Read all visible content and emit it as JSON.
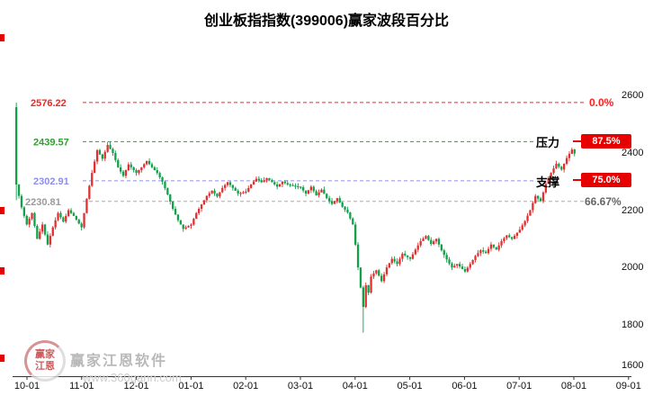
{
  "title": "创业板指指数(399006)赢家波段百分比",
  "colors": {
    "up": "#e03030",
    "down": "#12a04a",
    "axis": "#333333",
    "pct_box": "#e60000",
    "mark": "#e60000"
  },
  "y_axis": {
    "values": [
      2600,
      2400,
      2200,
      2000,
      1800,
      1600
    ],
    "labels": [
      "2600",
      "2400",
      "2200",
      "2000",
      "1800",
      "1600"
    ]
  },
  "x_axis": {
    "labels": [
      "10-01",
      "11-01",
      "12-01",
      "01-01",
      "02-01",
      "03-01",
      "04-01",
      "05-01",
      "06-01",
      "07-01",
      "08-01",
      "09-01"
    ]
  },
  "levels": [
    {
      "price": "2576.22",
      "value": 2576.22,
      "pct": "0.0%",
      "tag": "",
      "boxed": false,
      "label_color": "#ff2020",
      "line_color": "#ff2020",
      "pct_color": "#ff2020"
    },
    {
      "price": "2439.57",
      "value": 2439.57,
      "pct": "87.5%",
      "tag": "压力",
      "boxed": true,
      "label_color": "#2fa02f",
      "line_color": "#2fa02f",
      "pct_color": "#ffffff"
    },
    {
      "price": "2302.91",
      "value": 2302.91,
      "pct": "75.0%",
      "tag": "支撑",
      "boxed": true,
      "label_color": "#8d8df2",
      "line_color": "#8d8df2",
      "pct_color": "#ffffff"
    },
    {
      "price": "2230.81",
      "value": 2230.81,
      "pct": "66.67%",
      "tag": "",
      "boxed": false,
      "label_color": "#9a9a9a",
      "line_color": "#aaaaaa",
      "pct_color": "#666666"
    }
  ],
  "watermark": {
    "logo_text": "赢家江恩",
    "brand": "赢家江恩软件",
    "url": "www.360gann.com"
  },
  "chart_data": {
    "type": "candlestick",
    "title": "创业板指指数(399006)赢家波段百分比",
    "symbol": "399006",
    "y_range": [
      1600,
      2600
    ],
    "x_tick_labels": [
      "10-01",
      "11-01",
      "12-01",
      "01-01",
      "02-01",
      "03-01",
      "04-01",
      "05-01",
      "06-01",
      "07-01",
      "08-01",
      "09-01"
    ],
    "retracement_levels": [
      {
        "pct": "0.0%",
        "price": 2576.22,
        "label": ""
      },
      {
        "pct": "87.5%",
        "price": 2439.57,
        "label": "压力"
      },
      {
        "pct": "75.0%",
        "price": 2302.91,
        "label": "支撑"
      },
      {
        "pct": "66.67%",
        "price": 2230.81,
        "label": ""
      }
    ],
    "count": 215,
    "close_anchors": [
      [
        0,
        2290
      ],
      [
        2,
        2210
      ],
      [
        4,
        2150
      ],
      [
        6,
        2190
      ],
      [
        8,
        2100
      ],
      [
        10,
        2150
      ],
      [
        12,
        2080
      ],
      [
        14,
        2140
      ],
      [
        16,
        2190
      ],
      [
        18,
        2160
      ],
      [
        20,
        2200
      ],
      [
        22,
        2180
      ],
      [
        25,
        2140
      ],
      [
        27,
        2240
      ],
      [
        29,
        2330
      ],
      [
        31,
        2410
      ],
      [
        33,
        2380
      ],
      [
        35,
        2428
      ],
      [
        37,
        2400
      ],
      [
        39,
        2350
      ],
      [
        41,
        2320
      ],
      [
        43,
        2360
      ],
      [
        46,
        2330
      ],
      [
        48,
        2350
      ],
      [
        50,
        2372
      ],
      [
        52,
        2350
      ],
      [
        54,
        2330
      ],
      [
        56,
        2300
      ],
      [
        58,
        2255
      ],
      [
        60,
        2205
      ],
      [
        62,
        2165
      ],
      [
        64,
        2135
      ],
      [
        67,
        2150
      ],
      [
        69,
        2190
      ],
      [
        71,
        2220
      ],
      [
        73,
        2250
      ],
      [
        75,
        2268
      ],
      [
        77,
        2248
      ],
      [
        79,
        2278
      ],
      [
        81,
        2298
      ],
      [
        83,
        2278
      ],
      [
        85,
        2258
      ],
      [
        88,
        2265
      ],
      [
        90,
        2290
      ],
      [
        92,
        2310
      ],
      [
        94,
        2298
      ],
      [
        96,
        2312
      ],
      [
        98,
        2298
      ],
      [
        100,
        2282
      ],
      [
        102,
        2300
      ],
      [
        104,
        2290
      ],
      [
        109,
        2280
      ],
      [
        111,
        2258
      ],
      [
        113,
        2282
      ],
      [
        115,
        2252
      ],
      [
        117,
        2272
      ],
      [
        119,
        2242
      ],
      [
        121,
        2222
      ],
      [
        123,
        2242
      ],
      [
        125,
        2212
      ],
      [
        127,
        2192
      ],
      [
        129,
        2150
      ],
      [
        130,
        2080
      ],
      [
        131,
        2000
      ],
      [
        132,
        1930
      ],
      [
        133,
        1862
      ],
      [
        134,
        1938
      ],
      [
        135,
        1912
      ],
      [
        136,
        1968
      ],
      [
        138,
        1990
      ],
      [
        140,
        1952
      ],
      [
        142,
        2000
      ],
      [
        144,
        2030
      ],
      [
        146,
        2012
      ],
      [
        148,
        2048
      ],
      [
        151,
        2030
      ],
      [
        153,
        2062
      ],
      [
        155,
        2092
      ],
      [
        157,
        2110
      ],
      [
        159,
        2082
      ],
      [
        161,
        2100
      ],
      [
        163,
        2060
      ],
      [
        165,
        2028
      ],
      [
        167,
        2000
      ],
      [
        169,
        2012
      ],
      [
        172,
        1986
      ],
      [
        174,
        2012
      ],
      [
        176,
        2040
      ],
      [
        178,
        2060
      ],
      [
        180,
        2050
      ],
      [
        182,
        2080
      ],
      [
        184,
        2062
      ],
      [
        186,
        2092
      ],
      [
        188,
        2112
      ],
      [
        190,
        2100
      ],
      [
        193,
        2132
      ],
      [
        195,
        2162
      ],
      [
        197,
        2200
      ],
      [
        199,
        2250
      ],
      [
        201,
        2232
      ],
      [
        203,
        2292
      ],
      [
        205,
        2330
      ],
      [
        207,
        2362
      ],
      [
        209,
        2342
      ],
      [
        211,
        2382
      ],
      [
        213,
        2412
      ],
      [
        214,
        2398
      ]
    ],
    "specials": {
      "0": {
        "open": 2560,
        "high": 2576,
        "low": 2235
      },
      "133": {
        "low": 1772
      }
    }
  }
}
